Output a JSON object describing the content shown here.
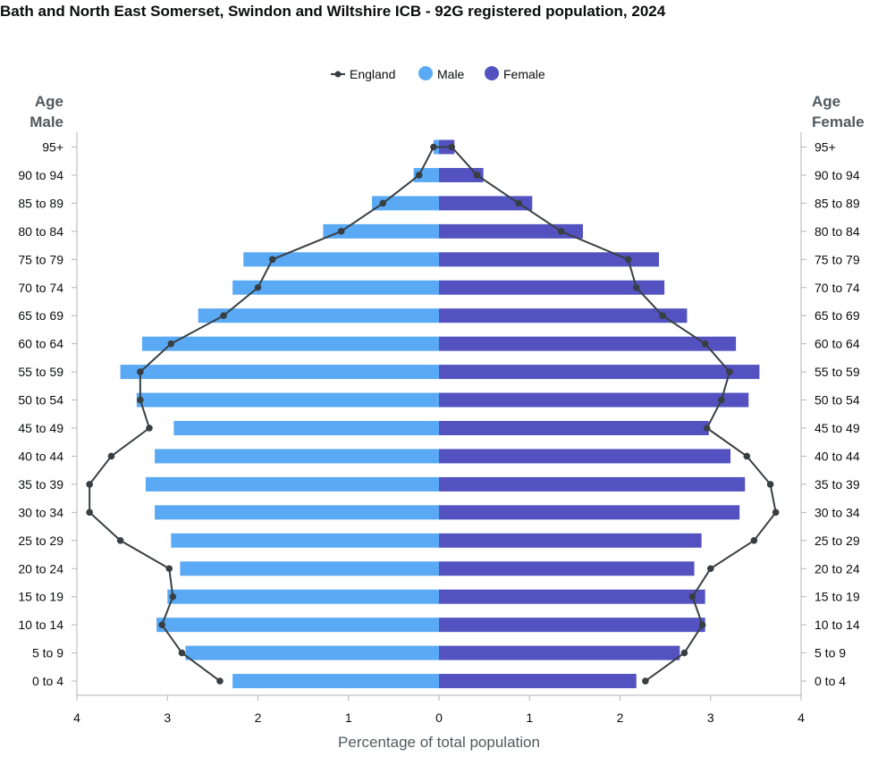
{
  "title": "Bath and North East Somerset, Swindon and Wiltshire ICB - 92G registered population, 2024",
  "chart_data": {
    "type": "bar",
    "orientation": "horizontal-population-pyramid",
    "categories": [
      "0 to 4",
      "5 to 9",
      "10 to 14",
      "15 to 19",
      "20 to 24",
      "25 to 29",
      "30 to 34",
      "35 to 39",
      "40 to 44",
      "45 to 49",
      "50 to 54",
      "55 to 59",
      "60 to 64",
      "65 to 69",
      "70 to 74",
      "75 to 79",
      "80 to 84",
      "85 to 89",
      "90 to 94",
      "95+"
    ],
    "series": [
      {
        "name": "Male",
        "color": "#5aa9f4",
        "values": [
          2.28,
          2.8,
          3.12,
          3.0,
          2.86,
          2.96,
          3.14,
          3.24,
          3.14,
          2.93,
          3.34,
          3.52,
          3.28,
          2.66,
          2.28,
          2.16,
          1.28,
          0.74,
          0.28,
          0.06
        ]
      },
      {
        "name": "Female",
        "color": "#5352c0",
        "values": [
          2.18,
          2.66,
          2.94,
          2.94,
          2.82,
          2.9,
          3.32,
          3.38,
          3.22,
          2.98,
          3.42,
          3.54,
          3.28,
          2.74,
          2.49,
          2.43,
          1.59,
          1.03,
          0.49,
          0.17
        ]
      },
      {
        "name": "England",
        "type": "line",
        "color": "#383f43",
        "male": [
          2.42,
          2.84,
          3.06,
          2.94,
          2.98,
          3.52,
          3.86,
          3.86,
          3.62,
          3.2,
          3.3,
          3.3,
          2.96,
          2.38,
          2.0,
          1.84,
          1.08,
          0.62,
          0.22,
          0.06
        ],
        "female": [
          2.28,
          2.71,
          2.91,
          2.8,
          3.0,
          3.48,
          3.72,
          3.66,
          3.4,
          2.96,
          3.12,
          3.21,
          2.94,
          2.47,
          2.18,
          2.09,
          1.35,
          0.88,
          0.42,
          0.14
        ]
      }
    ],
    "xlabel": "Percentage of total population",
    "xticks": [
      "4",
      "3",
      "2",
      "1",
      "0",
      "1",
      "2",
      "3",
      "4"
    ],
    "xlim": [
      -4,
      4
    ],
    "left_axis_heading": [
      "Age",
      "Male"
    ],
    "right_axis_heading": [
      "Age",
      "Female"
    ],
    "legend": {
      "position": "top-center",
      "items": [
        "England",
        "Male",
        "Female"
      ]
    },
    "grid": false
  }
}
